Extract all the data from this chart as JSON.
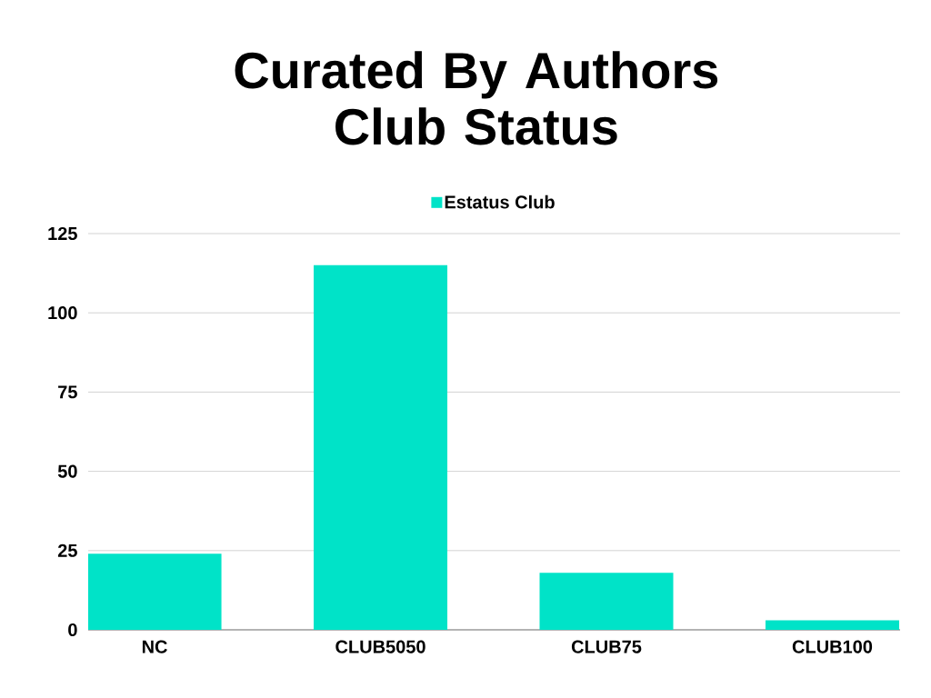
{
  "chart_data": {
    "type": "bar",
    "title": "Curated By Authors Club Status",
    "categories": [
      "NC",
      "CLUB5050",
      "CLUB75",
      "CLUB100"
    ],
    "series": [
      {
        "name": "Estatus Club",
        "color": "#00e3c8",
        "values": [
          24,
          115,
          18,
          3
        ]
      }
    ],
    "ylim": [
      0,
      125
    ],
    "yticks": [
      0,
      25,
      50,
      75,
      100,
      125
    ],
    "grid": "y",
    "legend": "top"
  }
}
